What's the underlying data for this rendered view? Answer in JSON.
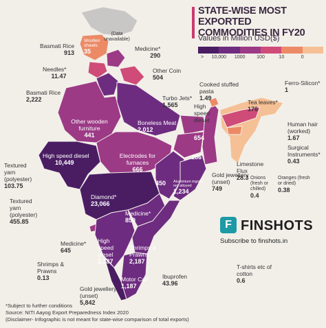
{
  "title_line1": "STATE-WISE MOST EXPORTED",
  "title_line2": "COMMODITIES IN FY20",
  "subtitle": "Values in Million USD($)",
  "legend": {
    "ticks": [
      ">",
      "10,000",
      "1000",
      "100",
      "10",
      "0"
    ],
    "colors": [
      "#4a1d63",
      "#6e2c80",
      "#9c3a86",
      "#cf4b78",
      "#ec8a66",
      "#f5c095"
    ]
  },
  "map_colors": {
    "land_dark": "#4a1d63",
    "land_mid": "#6e2c80",
    "land_rose": "#9c3a86",
    "land_pink": "#cf4b78",
    "land_orange": "#ec8a66",
    "land_peach": "#f5c095",
    "na_grey": "#c9c6c6"
  },
  "ladakh_note": "(Data unavailable)",
  "states": {
    "jk": {
      "name": "Woollen shawls",
      "value": "35"
    },
    "hp": {
      "name": "Medicine*",
      "value": "290"
    },
    "pb": {
      "name": "Basmati Rice",
      "value": "913"
    },
    "chd": {
      "name": "Needles*",
      "value": "11.47"
    },
    "ut": {
      "name": "Other Coin",
      "value": "504"
    },
    "hr": {
      "name": "Basmati Rice",
      "value": "2,222"
    },
    "dl": {
      "name": "Turbo Jets*",
      "value": "1,565"
    },
    "sk": {
      "name": "Cooked stuffed pasta",
      "value": "1.49"
    },
    "ar": {
      "name": "Ferro-Silicon*",
      "value": "1"
    },
    "as": {
      "name": "Tea leaves*",
      "value": "176"
    },
    "wb": {
      "name": "High speed diesel",
      "value": "654"
    },
    "rj": {
      "name": "Other wooden furniture",
      "value": "441"
    },
    "up": {
      "name": "Boneless Meat",
      "value": "2,012"
    },
    "br": {
      "name": "",
      "value": "186"
    },
    "nl": {
      "name": "Human hair (worked)",
      "value": "1.67"
    },
    "mn": {
      "name": "Surgical Instruments*",
      "value": "0.43"
    },
    "ml": {
      "name": "Limestone Flux",
      "value": "28.3"
    },
    "tr": {
      "name": "Onions (fresh or chilled)",
      "value": "0.4"
    },
    "mz": {
      "name": "Oranges (fresh or dried)",
      "value": "0.38"
    },
    "jh": {
      "name": "Gold jewellery (unset)",
      "value": "749"
    },
    "gj": {
      "name": "High speed diesel",
      "value": "10,449"
    },
    "mp": {
      "name": "Electrodes for furnaces",
      "value": "666"
    },
    "cg": {
      "name": "Aluminium ingots not alloyed",
      "value": "450"
    },
    "od": {
      "name": "Aluminium ingots not alloyed",
      "value": "1,234"
    },
    "dnh": {
      "name": "Textured yarn (polyester)",
      "value": "103.75"
    },
    "dd": {
      "name": "Textured yarn (polyester)",
      "value": "455.85"
    },
    "mh": {
      "name": "Diamond*",
      "value": "23,066"
    },
    "tg": {
      "name": "Medicine*",
      "value": "850"
    },
    "goa": {
      "name": "Medicine*",
      "value": "645"
    },
    "ap": {
      "name": "Shrimps & Prawns",
      "value": "2,187"
    },
    "ka": {
      "name": "High speed diesel",
      "value": "1,387"
    },
    "ld": {
      "name": "Shrimps & Prawns",
      "value": "0.13"
    },
    "py": {
      "name": "Ibuprofen",
      "value": "43.96"
    },
    "tn": {
      "name": "Motor Car*",
      "value": "1,187"
    },
    "kl": {
      "name": "Gold jewellery (unset)",
      "value": "5,842"
    },
    "an": {
      "name": "T-shirts etc of cotton",
      "value": "0.6"
    }
  },
  "brand": {
    "name": "FINSHOTS",
    "tagline": "Subscribe to finshots.in"
  },
  "footnotes": [
    "*Subject to further conditions",
    "Source: NITI Aayog Export Preparedness Index 2020",
    "(Disclaimer- Infographic is not meant for state-wise comparison of total exports)"
  ]
}
